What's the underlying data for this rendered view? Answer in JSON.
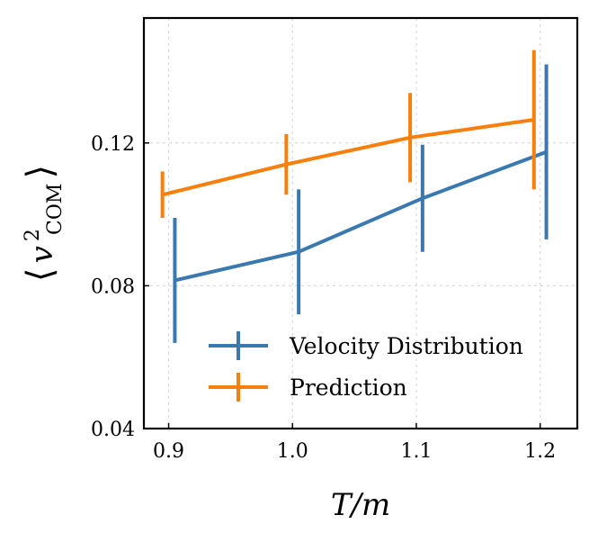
{
  "chart_data": {
    "type": "line",
    "title": "",
    "xlabel": "T/m",
    "ylabel": "⟨v²_COM⟩",
    "ylabel_parts": {
      "open": "⟨",
      "base": "v",
      "sup": "2",
      "sub": "COM",
      "close": "⟩"
    },
    "xlim": [
      0.88,
      1.23
    ],
    "ylim": [
      0.04,
      0.155
    ],
    "xticks": [
      0.9,
      1.0,
      1.1,
      1.2
    ],
    "xtick_labels": [
      "0.9",
      "1.0",
      "1.1",
      "1.2"
    ],
    "yticks": [
      0.04,
      0.08,
      0.12
    ],
    "ytick_labels": [
      "0.04",
      "0.08",
      "0.12"
    ],
    "grid": true,
    "legend_position": "lower-right",
    "series": [
      {
        "name": "Velocity Distribution",
        "color": "#3a78b0",
        "x": [
          0.905,
          1.005,
          1.105,
          1.205
        ],
        "y": [
          0.0815,
          0.0895,
          0.1045,
          0.1175
        ],
        "err": [
          0.0175,
          0.0175,
          0.015,
          0.0245
        ]
      },
      {
        "name": "Prediction",
        "color": "#f77f0e",
        "x": [
          0.895,
          0.995,
          1.095,
          1.195
        ],
        "y": [
          0.1055,
          0.114,
          0.1215,
          0.1265
        ],
        "err": [
          0.0065,
          0.0085,
          0.0125,
          0.0195
        ]
      }
    ]
  }
}
